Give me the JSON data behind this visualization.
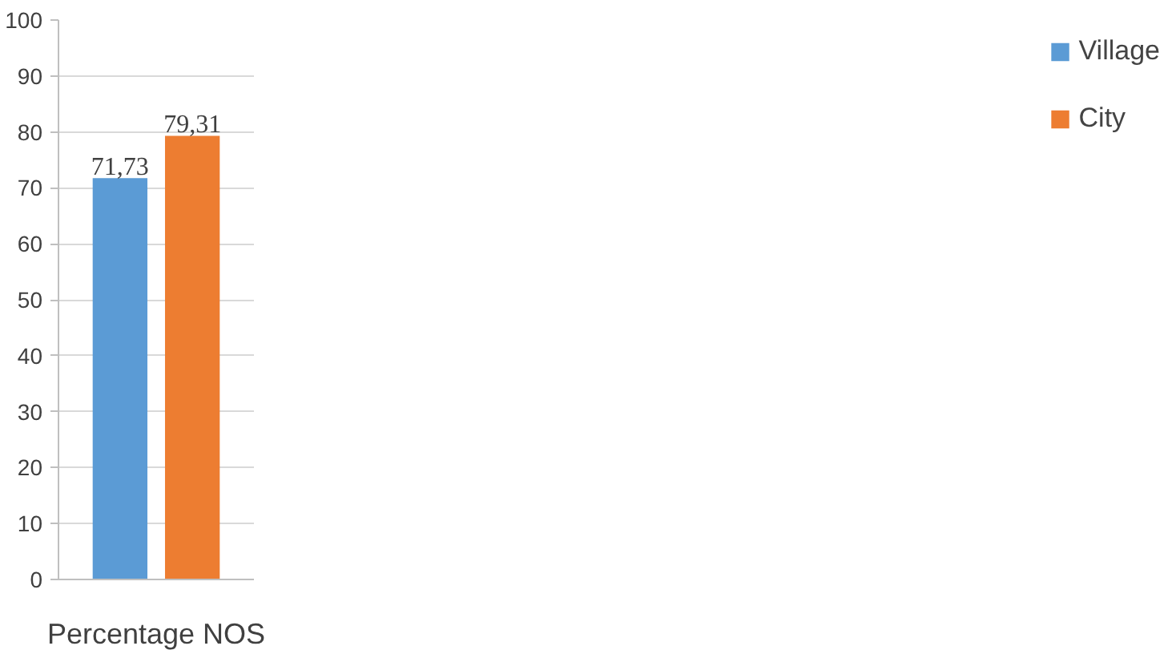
{
  "chart_data": {
    "type": "bar",
    "categories": [
      "Percentage NOS"
    ],
    "series": [
      {
        "name": "Village",
        "color": "#5b9bd5",
        "values": [
          71.73
        ],
        "value_labels": [
          "71,73"
        ]
      },
      {
        "name": "City",
        "color": "#ed7d31",
        "values": [
          79.31
        ],
        "value_labels": [
          "79,31"
        ]
      }
    ],
    "ylim": [
      0,
      100
    ],
    "yticks": [
      0,
      10,
      20,
      30,
      40,
      50,
      60,
      70,
      80,
      90,
      100
    ],
    "grid": "y",
    "legend": "right"
  }
}
